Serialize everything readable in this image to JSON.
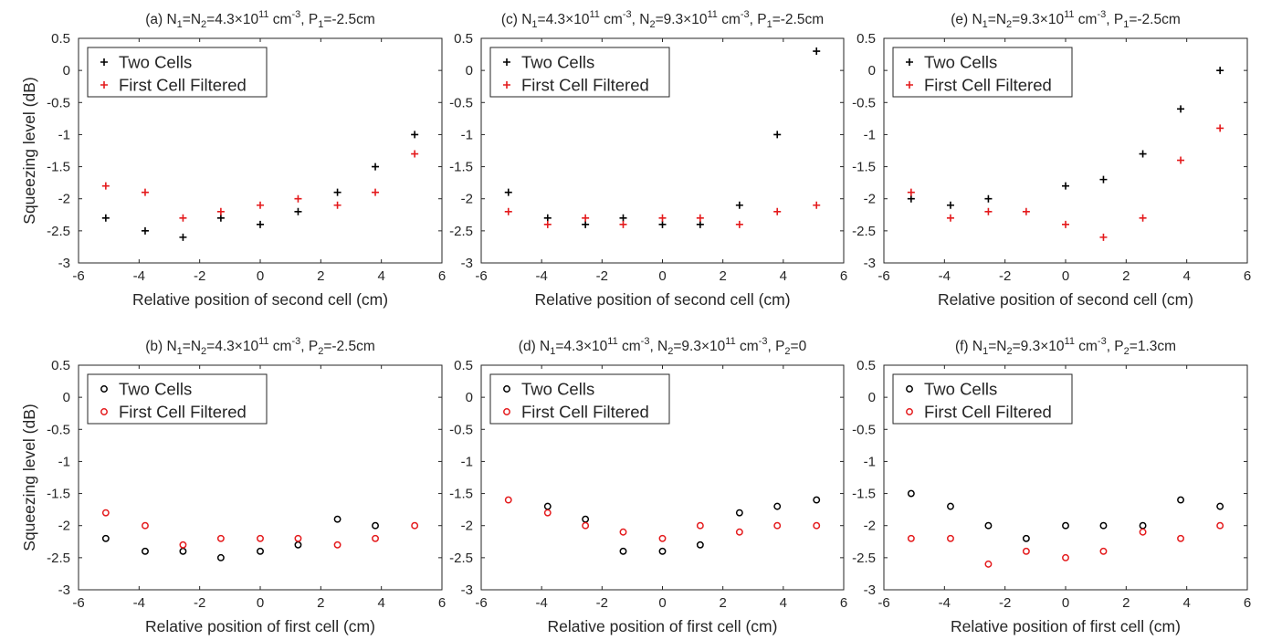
{
  "colors": {
    "two_cells": "#000000",
    "first_cell_filtered": "#e41a1c",
    "axis": "#262626"
  },
  "chart_data": [
    {
      "id": "a",
      "type": "scatter",
      "marker": "plus",
      "title_parts": [
        "(a) N",
        "1",
        "=N",
        "2",
        "=4.3×10",
        "11",
        " cm",
        "-3",
        ", P",
        "1",
        "=-2.5cm"
      ],
      "title_styles": [
        "t",
        "sub",
        "t",
        "sub",
        "t",
        "sup",
        "t",
        "sup",
        "t",
        "sub",
        "t"
      ],
      "xlabel": "Relative position of second cell (cm)",
      "ylabel": "Squeezing level (dB)",
      "xlim": [
        -6,
        6
      ],
      "ylim": [
        -3,
        0.5
      ],
      "x": [
        -5.1,
        -3.8,
        -2.55,
        -1.3,
        0,
        1.25,
        2.55,
        3.8,
        5.1
      ],
      "series": [
        {
          "name": "Two Cells",
          "values": [
            -2.3,
            -2.5,
            -2.6,
            -2.3,
            -2.4,
            -2.2,
            -1.9,
            -1.5,
            -1.0
          ]
        },
        {
          "name": "First Cell Filtered",
          "values": [
            -1.8,
            -1.9,
            -2.3,
            -2.2,
            -2.1,
            -2.0,
            -2.1,
            -1.9,
            -1.3
          ]
        }
      ],
      "legend": "top-left"
    },
    {
      "id": "c",
      "type": "scatter",
      "marker": "plus",
      "title_parts": [
        "(c) N",
        "1",
        "=4.3×10",
        "11",
        " cm",
        "-3",
        ", N",
        "2",
        "=9.3×10",
        "11",
        " cm",
        "-3",
        ", P",
        "1",
        "=-2.5cm"
      ],
      "title_styles": [
        "t",
        "sub",
        "t",
        "sup",
        "t",
        "sup",
        "t",
        "sub",
        "t",
        "sup",
        "t",
        "sup",
        "t",
        "sub",
        "t"
      ],
      "xlabel": "Relative position of second cell (cm)",
      "ylabel": "",
      "xlim": [
        -6,
        6
      ],
      "ylim": [
        -3,
        0.5
      ],
      "x": [
        -5.1,
        -3.8,
        -2.55,
        -1.3,
        0,
        1.25,
        2.55,
        3.8,
        5.1
      ],
      "series": [
        {
          "name": "Two Cells",
          "values": [
            -1.9,
            -2.3,
            -2.4,
            -2.3,
            -2.4,
            -2.4,
            -2.1,
            -1.0,
            0.3
          ]
        },
        {
          "name": "First Cell Filtered",
          "values": [
            -2.2,
            -2.4,
            -2.3,
            -2.4,
            -2.3,
            -2.3,
            -2.4,
            -2.2,
            -2.1
          ]
        }
      ],
      "legend": "top-left"
    },
    {
      "id": "e",
      "type": "scatter",
      "marker": "plus",
      "title_parts": [
        "(e) N",
        "1",
        "=N",
        "2",
        "=9.3×10",
        "11",
        " cm",
        "-3",
        ", P",
        "1",
        "=-2.5cm"
      ],
      "title_styles": [
        "t",
        "sub",
        "t",
        "sub",
        "t",
        "sup",
        "t",
        "sup",
        "t",
        "sub",
        "t"
      ],
      "xlabel": "Relative position of second cell (cm)",
      "ylabel": "",
      "xlim": [
        -6,
        6
      ],
      "ylim": [
        -3,
        0.5
      ],
      "x": [
        -5.1,
        -3.8,
        -2.55,
        -1.3,
        0,
        1.25,
        2.55,
        3.8,
        5.1
      ],
      "series": [
        {
          "name": "Two Cells",
          "x": [
            -5.1,
            -3.8,
            -2.55,
            0,
            1.25,
            2.55,
            3.8,
            5.1
          ],
          "values": [
            -2.0,
            -2.1,
            -2.0,
            -1.8,
            -1.7,
            -1.3,
            -0.6,
            0.0
          ]
        },
        {
          "name": "First Cell Filtered",
          "x": [
            -5.1,
            -3.8,
            -2.55,
            -1.3,
            0,
            1.25,
            2.55,
            3.8,
            5.1
          ],
          "values": [
            -1.9,
            -2.3,
            -2.2,
            -2.2,
            -2.4,
            -2.6,
            -2.3,
            -1.4,
            -0.9
          ]
        }
      ],
      "legend": "top-left"
    },
    {
      "id": "b",
      "type": "scatter",
      "marker": "circle",
      "title_parts": [
        "(b) N",
        "1",
        "=N",
        "2",
        "=4.3×10",
        "11",
        " cm",
        "-3",
        ", P",
        "2",
        "=-2.5cm"
      ],
      "title_styles": [
        "t",
        "sub",
        "t",
        "sub",
        "t",
        "sup",
        "t",
        "sup",
        "t",
        "sub",
        "t"
      ],
      "xlabel": "Relative position of first cell (cm)",
      "ylabel": "Squeezing level (dB)",
      "xlim": [
        -6,
        6
      ],
      "ylim": [
        -3,
        0.5
      ],
      "series": [
        {
          "name": "Two Cells",
          "x": [
            -5.1,
            -3.8,
            -2.55,
            -1.3,
            0,
            1.25,
            2.55,
            3.8
          ],
          "values": [
            -2.2,
            -2.4,
            -2.4,
            -2.5,
            -2.4,
            -2.3,
            -1.9,
            -2.0
          ]
        },
        {
          "name": "First Cell Filtered",
          "x": [
            -5.1,
            -3.8,
            -2.55,
            -1.3,
            0,
            1.25,
            2.55,
            3.8,
            5.1
          ],
          "values": [
            -1.8,
            -2.0,
            -2.3,
            -2.2,
            -2.2,
            -2.2,
            -2.3,
            -2.2,
            -2.0
          ]
        }
      ],
      "legend": "top-left"
    },
    {
      "id": "d",
      "type": "scatter",
      "marker": "circle",
      "title_parts": [
        "(d) N",
        "1",
        "=4.3×10",
        "11",
        " cm",
        "-3",
        ", N",
        "2",
        "=9.3×10",
        "11",
        " cm",
        "-3",
        ", P",
        "2",
        "=0"
      ],
      "title_styles": [
        "t",
        "sub",
        "t",
        "sup",
        "t",
        "sup",
        "t",
        "sub",
        "t",
        "sup",
        "t",
        "sup",
        "t",
        "sub",
        "t"
      ],
      "xlabel": "Relative position of first cell (cm)",
      "ylabel": "",
      "xlim": [
        -6,
        6
      ],
      "ylim": [
        -3,
        0.5
      ],
      "series": [
        {
          "name": "Two Cells",
          "x": [
            -3.8,
            -2.55,
            -1.3,
            0,
            1.25,
            2.55,
            3.8,
            5.1
          ],
          "values": [
            -1.7,
            -1.9,
            -2.4,
            -2.4,
            -2.3,
            -1.8,
            -1.7,
            -1.6
          ]
        },
        {
          "name": "First Cell Filtered",
          "x": [
            -5.1,
            -3.8,
            -2.55,
            -1.3,
            0,
            1.25,
            2.55,
            3.8,
            5.1
          ],
          "values": [
            -1.6,
            -1.8,
            -2.0,
            -2.1,
            -2.2,
            -2.0,
            -2.1,
            -2.0,
            -2.0
          ]
        }
      ],
      "legend": "top-left"
    },
    {
      "id": "f",
      "type": "scatter",
      "marker": "circle",
      "title_parts": [
        "(f) N",
        "1",
        "=N",
        "2",
        "=9.3×10",
        "11",
        " cm",
        "-3",
        ", P",
        "2",
        "=1.3cm"
      ],
      "title_styles": [
        "t",
        "sub",
        "t",
        "sub",
        "t",
        "sup",
        "t",
        "sup",
        "t",
        "sub",
        "t"
      ],
      "xlabel": "Relative position of first cell (cm)",
      "ylabel": "",
      "xlim": [
        -6,
        6
      ],
      "ylim": [
        -3,
        0.5
      ],
      "series": [
        {
          "name": "Two Cells",
          "x": [
            -5.1,
            -3.8,
            -2.55,
            -1.3,
            0,
            1.25,
            2.55,
            3.8,
            5.1
          ],
          "values": [
            -1.5,
            -1.7,
            -2.0,
            -2.2,
            -2.0,
            -2.0,
            -2.0,
            -1.6,
            -1.7
          ]
        },
        {
          "name": "First Cell Filtered",
          "x": [
            -5.1,
            -3.8,
            -2.55,
            -1.3,
            0,
            1.25,
            2.55,
            3.8,
            5.1
          ],
          "values": [
            -2.2,
            -2.2,
            -2.6,
            -2.4,
            -2.5,
            -2.4,
            -2.1,
            -2.2,
            -2.0
          ]
        }
      ],
      "legend": "top-left"
    }
  ]
}
